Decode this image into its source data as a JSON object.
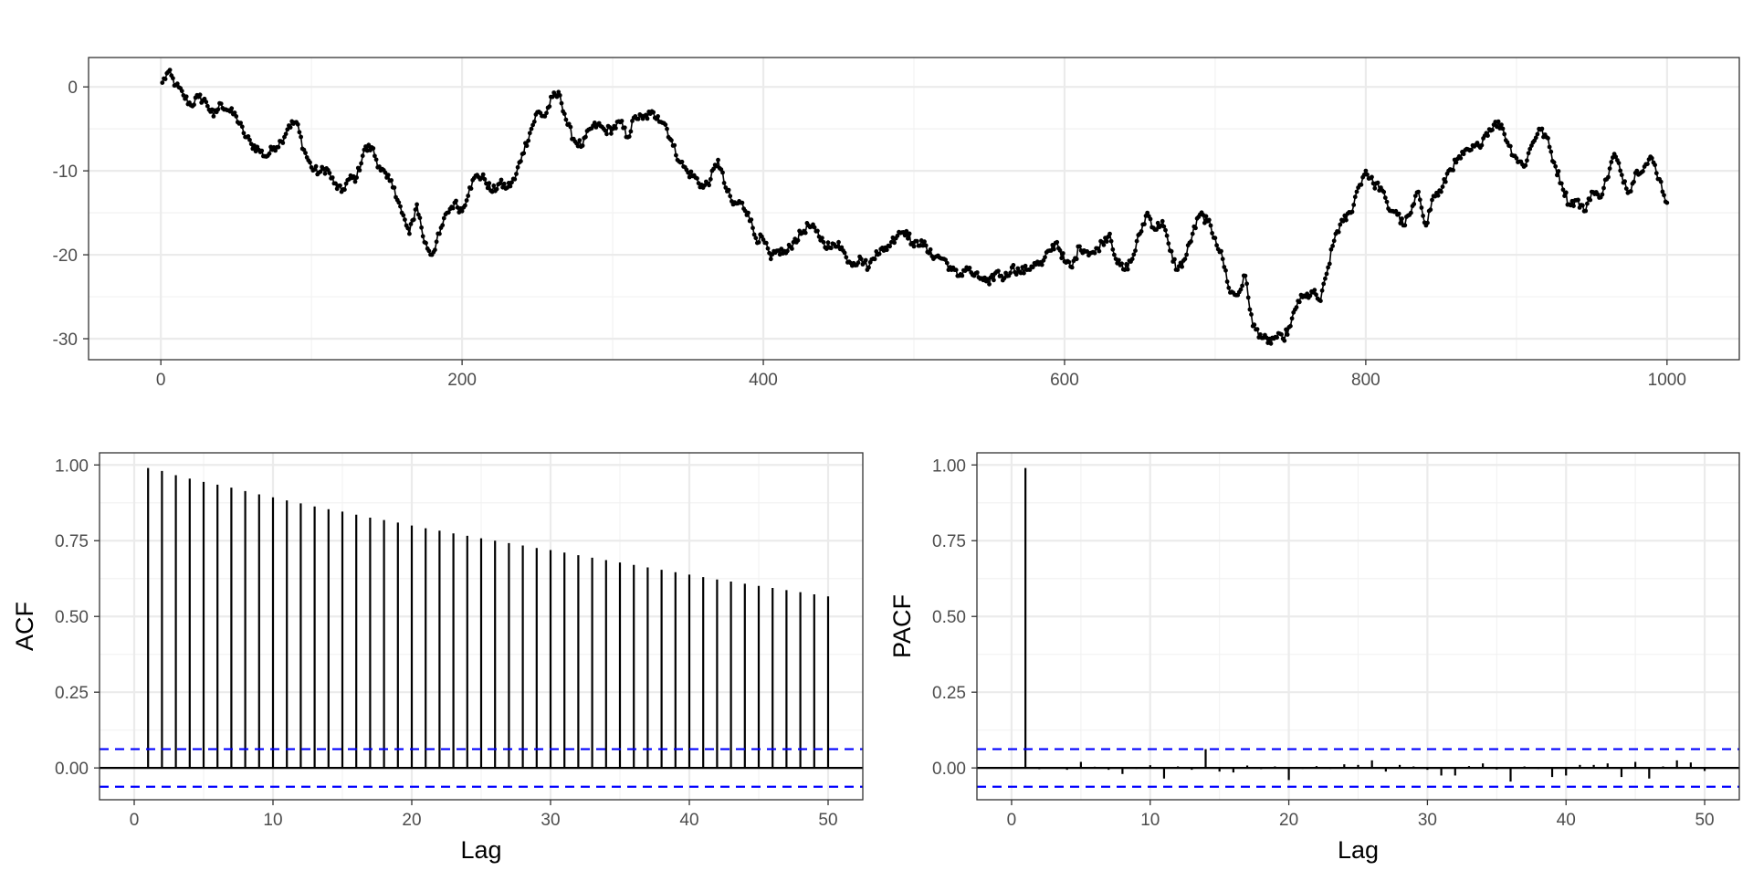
{
  "chart_data": [
    {
      "id": "series",
      "type": "line",
      "title": "",
      "xlabel": "",
      "ylabel": "",
      "xlim": [
        -48,
        1048
      ],
      "ylim": [
        -32.5,
        3.5
      ],
      "x_ticks": [
        0,
        200,
        400,
        600,
        800,
        1000
      ],
      "x_tick_labels": [
        "0",
        "200",
        "400",
        "600",
        "800",
        "1000"
      ],
      "y_ticks": [
        0,
        -10,
        -20,
        -30
      ],
      "y_tick_labels": [
        "0",
        "-10",
        "-20",
        "-30"
      ],
      "grid": true,
      "markers": true,
      "n_points": 1000,
      "anchors": [
        [
          1,
          0.5
        ],
        [
          5,
          1.8
        ],
        [
          10,
          0.2
        ],
        [
          15,
          -1
        ],
        [
          20,
          -2.2
        ],
        [
          25,
          -1.2
        ],
        [
          30,
          -1.8
        ],
        [
          35,
          -3.5
        ],
        [
          40,
          -2
        ],
        [
          45,
          -2.8
        ],
        [
          50,
          -3.5
        ],
        [
          55,
          -5.5
        ],
        [
          60,
          -6.8
        ],
        [
          65,
          -7.5
        ],
        [
          70,
          -8.3
        ],
        [
          75,
          -7.2
        ],
        [
          80,
          -6.5
        ],
        [
          85,
          -4.6
        ],
        [
          90,
          -4.2
        ],
        [
          95,
          -7.5
        ],
        [
          100,
          -9.6
        ],
        [
          105,
          -10.2
        ],
        [
          110,
          -9.7
        ],
        [
          115,
          -11.5
        ],
        [
          120,
          -12.5
        ],
        [
          125,
          -11
        ],
        [
          130,
          -10.8
        ],
        [
          135,
          -7.5
        ],
        [
          140,
          -7.2
        ],
        [
          145,
          -9.5
        ],
        [
          150,
          -10.8
        ],
        [
          155,
          -12
        ],
        [
          160,
          -15
        ],
        [
          165,
          -17.5
        ],
        [
          170,
          -14
        ],
        [
          175,
          -18.5
        ],
        [
          180,
          -20
        ],
        [
          185,
          -17.5
        ],
        [
          190,
          -15
        ],
        [
          195,
          -13.8
        ],
        [
          200,
          -14.8
        ],
        [
          205,
          -12
        ],
        [
          210,
          -10.5
        ],
        [
          215,
          -11
        ],
        [
          220,
          -12.5
        ],
        [
          225,
          -11.5
        ],
        [
          230,
          -12
        ],
        [
          235,
          -11
        ],
        [
          240,
          -8
        ],
        [
          245,
          -5.5
        ],
        [
          250,
          -3
        ],
        [
          255,
          -3.5
        ],
        [
          260,
          -1.2
        ],
        [
          265,
          -1
        ],
        [
          270,
          -4.5
        ],
        [
          275,
          -6.5
        ],
        [
          280,
          -7
        ],
        [
          285,
          -5
        ],
        [
          290,
          -4.5
        ],
        [
          295,
          -5.2
        ],
        [
          300,
          -5
        ],
        [
          305,
          -4.2
        ],
        [
          310,
          -6
        ],
        [
          315,
          -3.5
        ],
        [
          320,
          -3.8
        ],
        [
          325,
          -3.2
        ],
        [
          330,
          -3.5
        ],
        [
          335,
          -4.5
        ],
        [
          340,
          -7
        ],
        [
          345,
          -9
        ],
        [
          350,
          -10.2
        ],
        [
          355,
          -10.8
        ],
        [
          360,
          -12
        ],
        [
          365,
          -11
        ],
        [
          370,
          -8.7
        ],
        [
          375,
          -12
        ],
        [
          380,
          -14
        ],
        [
          385,
          -13.8
        ],
        [
          390,
          -15
        ],
        [
          395,
          -18
        ],
        [
          400,
          -18.2
        ],
        [
          405,
          -20.5
        ],
        [
          410,
          -19.5
        ],
        [
          415,
          -19.8
        ],
        [
          420,
          -18.5
        ],
        [
          425,
          -17.5
        ],
        [
          430,
          -16.5
        ],
        [
          435,
          -17.2
        ],
        [
          440,
          -18.5
        ],
        [
          445,
          -19.2
        ],
        [
          450,
          -18.5
        ],
        [
          455,
          -20.3
        ],
        [
          460,
          -21
        ],
        [
          465,
          -20.5
        ],
        [
          470,
          -21.5
        ],
        [
          475,
          -19.6
        ],
        [
          480,
          -19.5
        ],
        [
          485,
          -18.5
        ],
        [
          490,
          -17.3
        ],
        [
          495,
          -17.2
        ],
        [
          500,
          -19
        ],
        [
          505,
          -18.3
        ],
        [
          510,
          -19.8
        ],
        [
          515,
          -20.2
        ],
        [
          520,
          -20.5
        ],
        [
          525,
          -21.8
        ],
        [
          530,
          -22.5
        ],
        [
          535,
          -21.5
        ],
        [
          540,
          -22.5
        ],
        [
          545,
          -22.8
        ],
        [
          550,
          -23.5
        ],
        [
          555,
          -22
        ],
        [
          560,
          -22.8
        ],
        [
          565,
          -21.5
        ],
        [
          570,
          -22
        ],
        [
          575,
          -21.8
        ],
        [
          580,
          -21
        ],
        [
          585,
          -21.2
        ],
        [
          590,
          -19.5
        ],
        [
          595,
          -18.5
        ],
        [
          600,
          -20.8
        ],
        [
          605,
          -21.5
        ],
        [
          610,
          -19
        ],
        [
          615,
          -19.6
        ],
        [
          620,
          -19.8
        ],
        [
          625,
          -18.5
        ],
        [
          630,
          -17.5
        ],
        [
          635,
          -21
        ],
        [
          640,
          -21.8
        ],
        [
          645,
          -20.5
        ],
        [
          650,
          -17.5
        ],
        [
          655,
          -15
        ],
        [
          660,
          -17
        ],
        [
          665,
          -16
        ],
        [
          670,
          -19.5
        ],
        [
          675,
          -21.8
        ],
        [
          680,
          -20.5
        ],
        [
          685,
          -17.5
        ],
        [
          690,
          -15.2
        ],
        [
          695,
          -16
        ],
        [
          700,
          -18
        ],
        [
          705,
          -20.5
        ],
        [
          710,
          -24.5
        ],
        [
          715,
          -24.8
        ],
        [
          720,
          -22.5
        ],
        [
          725,
          -28.5
        ],
        [
          730,
          -29.5
        ],
        [
          735,
          -30.5
        ],
        [
          740,
          -29.8
        ],
        [
          745,
          -30
        ],
        [
          750,
          -28.5
        ],
        [
          755,
          -25.5
        ],
        [
          760,
          -25
        ],
        [
          765,
          -24.5
        ],
        [
          770,
          -25.5
        ],
        [
          775,
          -21.5
        ],
        [
          780,
          -17.5
        ],
        [
          785,
          -16
        ],
        [
          790,
          -15
        ],
        [
          795,
          -12
        ],
        [
          800,
          -10
        ],
        [
          805,
          -11.5
        ],
        [
          810,
          -12
        ],
        [
          815,
          -14.5
        ],
        [
          820,
          -14.8
        ],
        [
          825,
          -16.5
        ],
        [
          830,
          -15
        ],
        [
          835,
          -12.5
        ],
        [
          840,
          -16.5
        ],
        [
          845,
          -13
        ],
        [
          850,
          -12.5
        ],
        [
          855,
          -10
        ],
        [
          860,
          -9
        ],
        [
          865,
          -8
        ],
        [
          870,
          -7.5
        ],
        [
          875,
          -7
        ],
        [
          880,
          -5.5
        ],
        [
          885,
          -4.5
        ],
        [
          890,
          -4.5
        ],
        [
          895,
          -7
        ],
        [
          900,
          -8.5
        ],
        [
          905,
          -9.5
        ],
        [
          910,
          -7
        ],
        [
          915,
          -5
        ],
        [
          920,
          -6
        ],
        [
          925,
          -9
        ],
        [
          930,
          -11.5
        ],
        [
          935,
          -14
        ],
        [
          940,
          -13.5
        ],
        [
          945,
          -14.8
        ],
        [
          950,
          -12.5
        ],
        [
          955,
          -13.2
        ],
        [
          960,
          -11
        ],
        [
          965,
          -8
        ],
        [
          970,
          -10.5
        ],
        [
          975,
          -12.5
        ],
        [
          980,
          -10
        ],
        [
          985,
          -9.5
        ],
        [
          990,
          -8.5
        ],
        [
          995,
          -11
        ],
        [
          1000,
          -13.8
        ]
      ]
    },
    {
      "id": "acf",
      "type": "bar",
      "title": "",
      "xlabel": "Lag",
      "ylabel": "ACF",
      "xlim": [
        -2.5,
        52.5
      ],
      "ylim": [
        -0.105,
        1.04
      ],
      "x_ticks": [
        0,
        10,
        20,
        30,
        40,
        50
      ],
      "x_tick_labels": [
        "0",
        "10",
        "20",
        "30",
        "40",
        "50"
      ],
      "y_ticks": [
        0,
        0.25,
        0.5,
        0.75,
        1.0
      ],
      "y_tick_labels": [
        "0.00",
        "0.25",
        "0.50",
        "0.75",
        "1.00"
      ],
      "grid": true,
      "confidence_bound": 0.062,
      "lags": [
        1,
        2,
        3,
        4,
        5,
        6,
        7,
        8,
        9,
        10,
        11,
        12,
        13,
        14,
        15,
        16,
        17,
        18,
        19,
        20,
        21,
        22,
        23,
        24,
        25,
        26,
        27,
        28,
        29,
        30,
        31,
        32,
        33,
        34,
        35,
        36,
        37,
        38,
        39,
        40,
        41,
        42,
        43,
        44,
        45,
        46,
        47,
        48,
        49,
        50
      ],
      "values": [
        0.99,
        0.98,
        0.966,
        0.955,
        0.944,
        0.935,
        0.925,
        0.914,
        0.903,
        0.893,
        0.883,
        0.873,
        0.863,
        0.854,
        0.846,
        0.836,
        0.826,
        0.818,
        0.81,
        0.8,
        0.791,
        0.783,
        0.774,
        0.766,
        0.758,
        0.75,
        0.742,
        0.734,
        0.726,
        0.719,
        0.711,
        0.702,
        0.694,
        0.686,
        0.678,
        0.67,
        0.662,
        0.654,
        0.646,
        0.638,
        0.63,
        0.622,
        0.615,
        0.608,
        0.601,
        0.594,
        0.587,
        0.58,
        0.573,
        0.566
      ]
    },
    {
      "id": "pacf",
      "type": "bar",
      "title": "",
      "xlabel": "Lag",
      "ylabel": "PACF",
      "xlim": [
        -2.5,
        52.5
      ],
      "ylim": [
        -0.105,
        1.04
      ],
      "x_ticks": [
        0,
        10,
        20,
        30,
        40,
        50
      ],
      "x_tick_labels": [
        "0",
        "10",
        "20",
        "30",
        "40",
        "50"
      ],
      "y_ticks": [
        0,
        0.25,
        0.5,
        0.75,
        1.0
      ],
      "y_tick_labels": [
        "0.00",
        "0.25",
        "0.50",
        "0.75",
        "1.00"
      ],
      "grid": true,
      "confidence_bound": 0.062,
      "lags": [
        1,
        2,
        3,
        4,
        5,
        6,
        7,
        8,
        9,
        10,
        11,
        12,
        13,
        14,
        15,
        16,
        17,
        18,
        19,
        20,
        21,
        22,
        23,
        24,
        25,
        26,
        27,
        28,
        29,
        30,
        31,
        32,
        33,
        34,
        35,
        36,
        37,
        38,
        39,
        40,
        41,
        42,
        43,
        44,
        45,
        46,
        47,
        48,
        49,
        50
      ],
      "values": [
        0.99,
        -0.004,
        0.003,
        -0.006,
        0.02,
        0.004,
        -0.006,
        -0.02,
        -0.003,
        0.009,
        -0.035,
        0.005,
        -0.006,
        0.062,
        -0.012,
        -0.015,
        0.008,
        -0.004,
        0.005,
        -0.04,
        -0.003,
        0.006,
        -0.003,
        0.012,
        0.01,
        0.025,
        -0.012,
        0.01,
        0.005,
        -0.006,
        -0.025,
        -0.025,
        0.006,
        0.015,
        -0.005,
        -0.045,
        0.005,
        -0.003,
        -0.03,
        -0.025,
        0.01,
        0.01,
        0.015,
        -0.03,
        0.02,
        -0.035,
        0.005,
        0.025,
        0.018,
        -0.01
      ]
    }
  ]
}
